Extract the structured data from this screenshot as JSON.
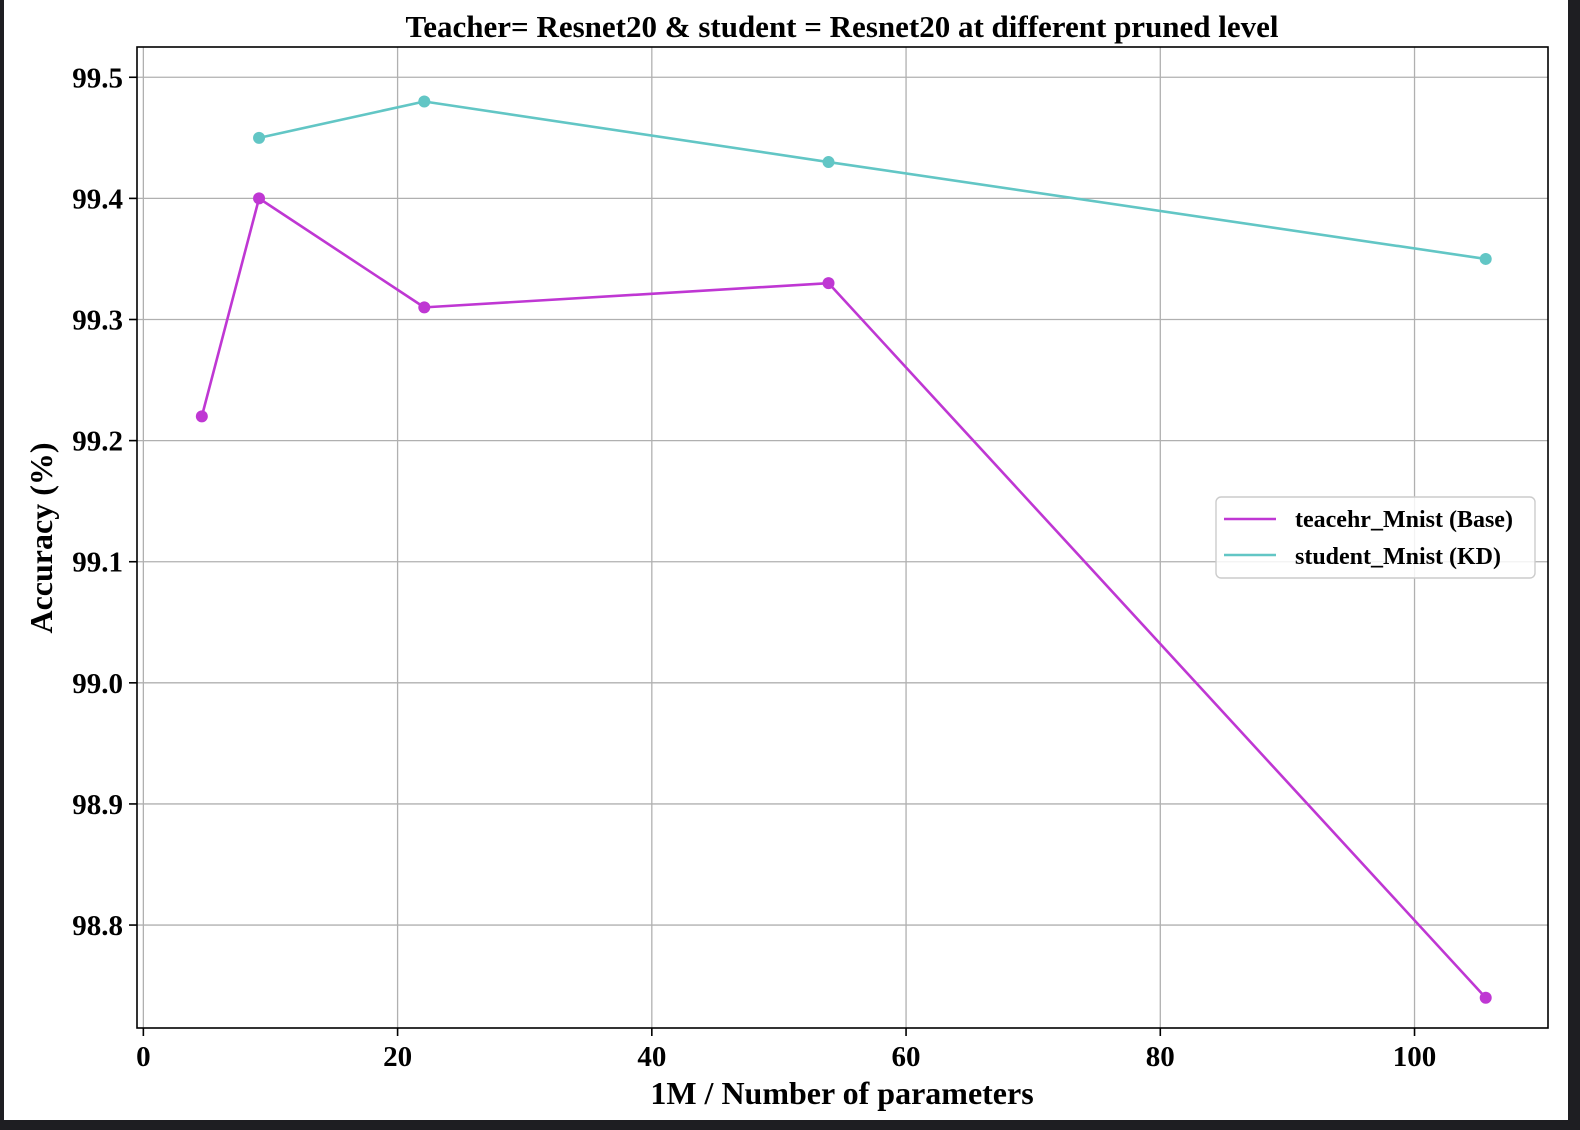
{
  "chart_data": {
    "type": "line",
    "title": "Teacher= Resnet20 & student = Resnet20 at different pruned level",
    "xlabel": "1M / Number of parameters",
    "ylabel": "Accuracy (%)",
    "xlim": [
      -0.5,
      110.5
    ],
    "ylim": [
      98.715,
      99.525
    ],
    "xticks": [
      "0",
      "20",
      "40",
      "60",
      "80",
      "100"
    ],
    "yticks": [
      "98.8",
      "98.9",
      "99.0",
      "99.1",
      "99.2",
      "99.3",
      "99.4",
      "99.5"
    ],
    "grid": true,
    "legend_position": "center-right",
    "series": [
      {
        "name": "teacehr_Mnist (Base)",
        "color": "#bf37d3",
        "x": [
          4.6,
          9.1,
          22.1,
          53.9,
          105.6
        ],
        "y": [
          99.22,
          99.4,
          99.31,
          99.33,
          98.74
        ]
      },
      {
        "name": "student_Mnist (KD)",
        "color": "#62c6c5",
        "x": [
          9.1,
          22.1,
          53.9,
          105.6
        ],
        "y": [
          99.45,
          99.48,
          99.43,
          99.35
        ]
      }
    ]
  }
}
